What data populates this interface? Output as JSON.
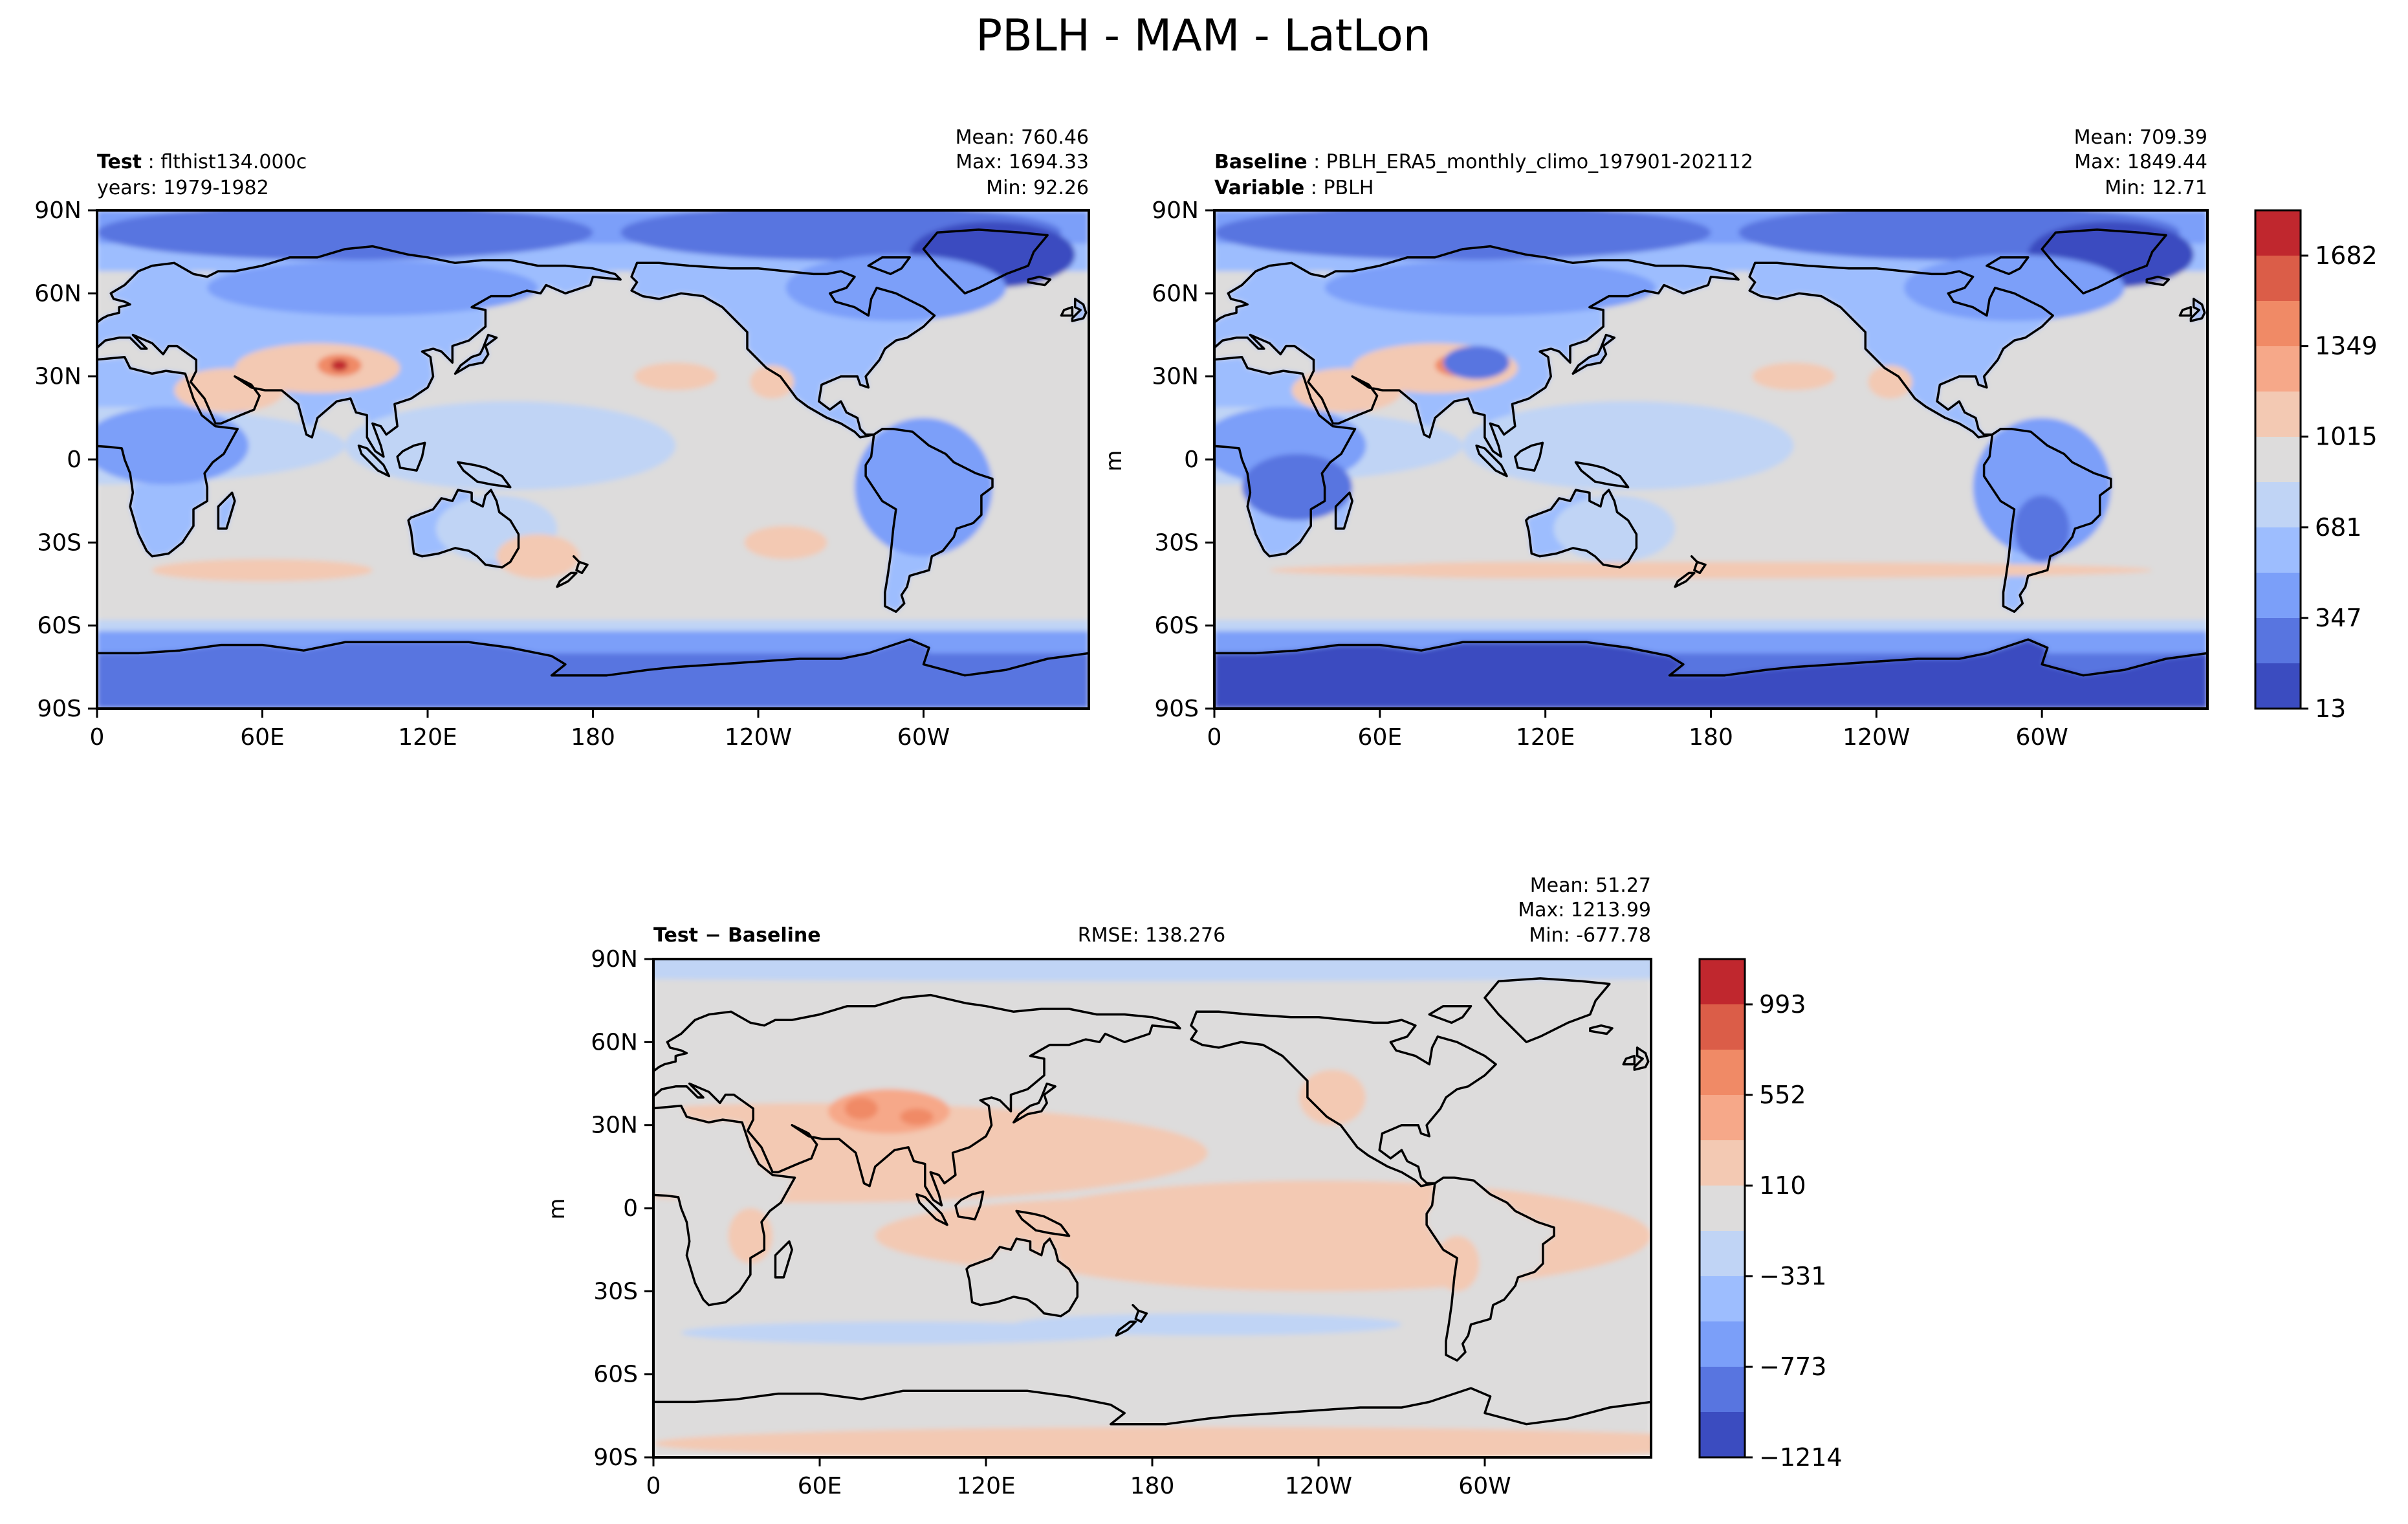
{
  "figure_title": "PBLH - MAM - LatLon",
  "axes": {
    "x_ticks": [
      "0",
      "60E",
      "120E",
      "180",
      "120W",
      "60W"
    ],
    "y_ticks": [
      "90N",
      "60N",
      "30N",
      "0",
      "30S",
      "60S",
      "90S"
    ]
  },
  "colors": {
    "blue_scale": [
      "#3b4cc0",
      "#5875e0",
      "#7b9ff9",
      "#9dbdfe",
      "#c0d4f5"
    ],
    "neutral": "#dddcdc",
    "red_scale": [
      "#f3c9b3",
      "#f6a889",
      "#f08a66",
      "#db5d48",
      "#c0272e"
    ],
    "coast": "#000000"
  },
  "chart_data": [
    {
      "type": "heatmap",
      "panel": "test",
      "label_bold": "Test",
      "label_sep": ":",
      "label_value": "flthist134.000c",
      "label_line2": "years: 1979-1982",
      "mean": "Mean: 760.46",
      "max": "Max: 1694.33",
      "min": "Min: 92.26",
      "units": "",
      "xlim": [
        0,
        360
      ],
      "ylim": [
        -90,
        90
      ]
    },
    {
      "type": "heatmap",
      "panel": "baseline",
      "label_bold": "Baseline",
      "label_sep": ":",
      "label_value": "PBLH_ERA5_monthly_climo_197901-202112",
      "label2_bold": "Variable",
      "label2_sep": ":",
      "label2_value": "PBLH",
      "mean": "Mean: 709.39",
      "max": "Max: 1849.44",
      "min": "Min: 12.71",
      "units": "m",
      "xlim": [
        0,
        360
      ],
      "ylim": [
        -90,
        90
      ],
      "colorbar_ticks": [
        "1682",
        "1349",
        "1015",
        "681",
        "347",
        "13"
      ],
      "colorbar_values": [
        1682,
        1349,
        1015,
        681,
        347,
        13
      ]
    },
    {
      "type": "heatmap",
      "panel": "difference",
      "label_bold": "Test − Baseline",
      "rmse": "RMSE: 138.276",
      "mean": "Mean: 51.27",
      "max": "Max: 1213.99",
      "min": "Min: -677.78",
      "units": "m",
      "xlim": [
        0,
        360
      ],
      "ylim": [
        -90,
        90
      ],
      "colorbar_ticks": [
        "993",
        "552",
        "110",
        "−331",
        "−773",
        "−1214"
      ],
      "colorbar_values": [
        993,
        552,
        110,
        -331,
        -773,
        -1214
      ]
    }
  ]
}
